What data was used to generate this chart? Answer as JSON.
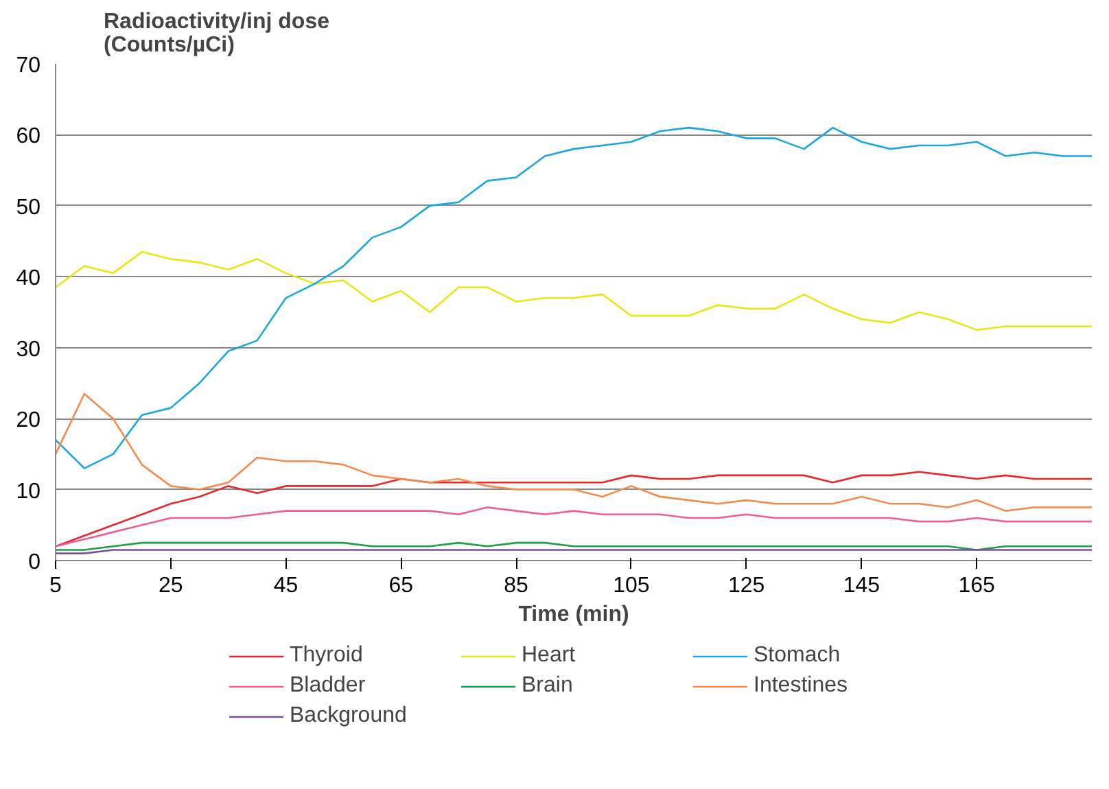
{
  "chart_data": {
    "type": "line",
    "xlabel": "Time (min)",
    "ylabel": "Radioactivity/inj dose\n(Counts/µCi)",
    "x": [
      5,
      10,
      15,
      20,
      25,
      30,
      35,
      40,
      45,
      50,
      55,
      60,
      65,
      70,
      75,
      80,
      85,
      90,
      95,
      100,
      105,
      110,
      115,
      120,
      125,
      130,
      135,
      140,
      145,
      150,
      155,
      160,
      165,
      170,
      175,
      180,
      185
    ],
    "xlim": [
      5,
      185
    ],
    "xticks": [
      5,
      25,
      45,
      65,
      85,
      105,
      125,
      145,
      165
    ],
    "ylim": [
      0,
      70
    ],
    "yticks": [
      0,
      10,
      20,
      30,
      40,
      50,
      60,
      70
    ],
    "grid": "y",
    "legend": "bottom",
    "marker": "none",
    "line_style": "solid",
    "series": [
      {
        "name": "Thyroid",
        "color": "#e8262b",
        "values": [
          2,
          3.5,
          5,
          6.5,
          8,
          9,
          10.5,
          9.5,
          10.5,
          10.5,
          10.5,
          10.5,
          11.5,
          11,
          11,
          11,
          11,
          11,
          11,
          11,
          12,
          11.5,
          11.5,
          12,
          12,
          12,
          12,
          11,
          12,
          12,
          12.5,
          12,
          11.5,
          12,
          11.5,
          11.5,
          11.5
        ]
      },
      {
        "name": "Heart",
        "color": "#e6e619",
        "values": [
          38.5,
          41.5,
          40.5,
          43.5,
          42.5,
          42,
          41,
          42.5,
          40.5,
          39,
          39.5,
          36.5,
          38,
          35,
          38.5,
          38.5,
          36.5,
          37,
          37,
          37.5,
          34.5,
          34.5,
          34.5,
          36,
          35.5,
          35.5,
          37.5,
          35.5,
          34,
          33.5,
          35,
          34,
          32.5,
          33,
          33,
          33,
          33
        ]
      },
      {
        "name": "Stomach",
        "color": "#1aa7e0",
        "values": [
          17,
          13,
          15,
          20.5,
          21.5,
          25,
          29.5,
          31,
          37,
          39,
          41.5,
          45.5,
          47,
          50,
          50.5,
          53.5,
          54,
          57,
          58,
          58.5,
          59,
          60.5,
          61,
          60.5,
          59.5,
          59.5,
          58,
          61,
          59,
          58,
          58.5,
          58.5,
          59,
          57,
          57.5,
          57,
          57
        ]
      },
      {
        "name": "Bladder",
        "color": "#ee5d97",
        "values": [
          2,
          3,
          4,
          5,
          6,
          6,
          6,
          6.5,
          7,
          7,
          7,
          7,
          7,
          7,
          6.5,
          7.5,
          7,
          6.5,
          7,
          6.5,
          6.5,
          6.5,
          6,
          6,
          6.5,
          6,
          6,
          6,
          6,
          6,
          5.5,
          5.5,
          6,
          5.5,
          5.5,
          5.5,
          5.5
        ]
      },
      {
        "name": "Brain",
        "color": "#1a9e49",
        "values": [
          1.5,
          1.5,
          2,
          2.5,
          2.5,
          2.5,
          2.5,
          2.5,
          2.5,
          2.5,
          2.5,
          2,
          2,
          2,
          2.5,
          2,
          2.5,
          2.5,
          2,
          2,
          2,
          2,
          2,
          2,
          2,
          2,
          2,
          2,
          2,
          2,
          2,
          2,
          1.5,
          2,
          2,
          2,
          2
        ]
      },
      {
        "name": "Intestines",
        "color": "#f48b4d",
        "values": [
          15,
          23.5,
          20,
          13.5,
          10.5,
          10,
          11,
          14.5,
          14,
          14,
          13.5,
          12,
          11.5,
          11,
          11.5,
          10.5,
          10,
          10,
          10,
          9,
          10.5,
          9,
          8.5,
          8,
          8.5,
          8,
          8,
          8,
          9,
          8,
          8,
          7.5,
          8.5,
          7,
          7.5,
          7.5,
          7.5
        ]
      },
      {
        "name": "Background",
        "color": "#7b4fa0",
        "values": [
          1,
          1,
          1.5,
          1.5,
          1.5,
          1.5,
          1.5,
          1.5,
          1.5,
          1.5,
          1.5,
          1.5,
          1.5,
          1.5,
          1.5,
          1.5,
          1.5,
          1.5,
          1.5,
          1.5,
          1.5,
          1.5,
          1.5,
          1.5,
          1.5,
          1.5,
          1.5,
          1.5,
          1.5,
          1.5,
          1.5,
          1.5,
          1.5,
          1.5,
          1.5,
          1.5,
          1.5
        ]
      }
    ]
  }
}
